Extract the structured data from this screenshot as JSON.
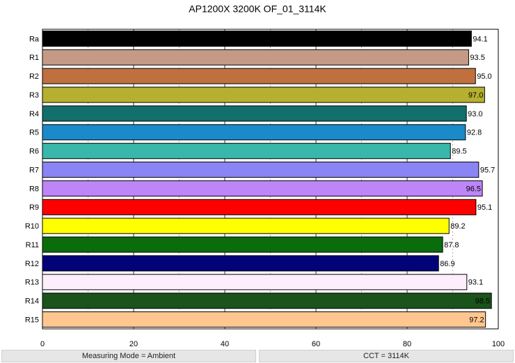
{
  "chart_data": {
    "type": "hbar",
    "title": "AP1200X 3200K OF_01_3114K",
    "categories": [
      "Ra",
      "R1",
      "R2",
      "R3",
      "R4",
      "R5",
      "R6",
      "R7",
      "R8",
      "R9",
      "R10",
      "R11",
      "R12",
      "R13",
      "R14",
      "R15"
    ],
    "values": [
      94.1,
      93.5,
      95.0,
      97.0,
      93.0,
      92.8,
      89.5,
      95.7,
      96.5,
      95.1,
      89.2,
      87.8,
      86.9,
      93.1,
      98.5,
      97.2
    ],
    "value_labels": [
      "94.1",
      "93.5",
      "95.0",
      "97.0",
      "93.0",
      "92.8",
      "89.5",
      "95.7",
      "96.5",
      "95.1",
      "89.2",
      "87.8",
      "86.9",
      "93.1",
      "98.5",
      "97.2"
    ],
    "colors": [
      "#000000",
      "#c49a86",
      "#c0703f",
      "#b5b030",
      "#136f6b",
      "#1a8ac9",
      "#38b8aa",
      "#8a84f5",
      "#be85f8",
      "#ff0000",
      "#ffff00",
      "#0b6c0b",
      "#020378",
      "#fdeefc",
      "#1a531b",
      "#ffc78f"
    ],
    "xlim": [
      0,
      100
    ],
    "xticks": [
      0,
      20,
      40,
      60,
      80,
      100
    ],
    "xminorgrid": [
      10,
      30,
      50,
      70,
      90
    ],
    "grid": true
  },
  "footer": [
    "Measuring Mode = Ambient",
    "CCT = 3114K"
  ]
}
